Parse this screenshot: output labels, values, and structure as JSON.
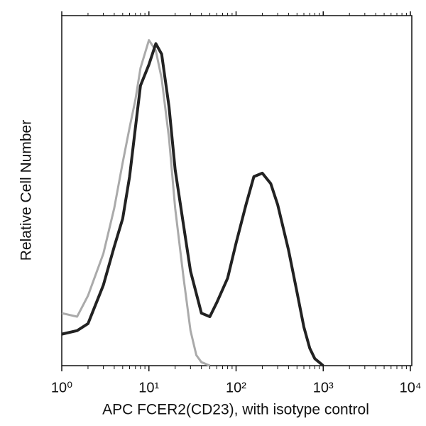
{
  "chart_data": {
    "type": "line",
    "x_label": "APC FCER2(CD23), with isotype control",
    "y_label": "Relative Cell Number",
    "xscale": "log",
    "xlim": [
      1,
      10000
    ],
    "xticks": [
      {
        "value": 1,
        "label": "10⁰"
      },
      {
        "value": 10,
        "label": "10¹"
      },
      {
        "value": 100,
        "label": "10²"
      },
      {
        "value": 1000,
        "label": "10³"
      },
      {
        "value": 10000,
        "label": "10⁴"
      }
    ],
    "ylim": [
      0,
      100
    ],
    "series": [
      {
        "color": "#aaaaaa",
        "x": [
          1,
          1.5,
          2,
          3,
          4,
          5,
          6,
          7,
          8,
          10,
          12,
          14,
          17,
          20,
          25,
          30,
          35,
          40,
          50
        ],
        "values": [
          15,
          14,
          20,
          32,
          45,
          58,
          68,
          76,
          85,
          93,
          90,
          82,
          65,
          45,
          25,
          10,
          3,
          1,
          0
        ]
      },
      {
        "color": "#222222",
        "x": [
          1,
          1.5,
          2,
          3,
          4,
          5,
          6,
          7,
          8,
          10,
          12,
          14,
          17,
          20,
          25,
          30,
          40,
          50,
          60,
          80,
          100,
          130,
          160,
          200,
          250,
          300,
          400,
          500,
          600,
          700,
          800,
          1000
        ],
        "values": [
          9,
          10,
          12,
          23,
          34,
          42,
          54,
          68,
          80,
          86,
          92,
          89,
          74,
          56,
          40,
          27,
          15,
          14,
          18,
          25,
          35,
          46,
          54,
          55,
          52,
          46,
          33,
          21,
          11,
          5,
          2,
          0
        ]
      }
    ]
  }
}
